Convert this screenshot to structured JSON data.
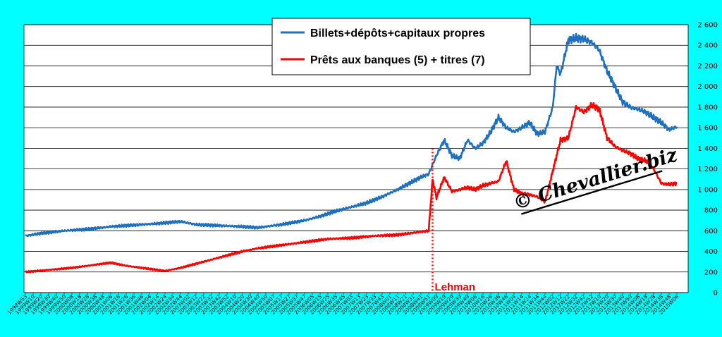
{
  "chart_data": {
    "type": "line",
    "title": "",
    "xlabel": "",
    "ylabel": "",
    "ylim": [
      0,
      2600
    ],
    "yticks": [
      "0",
      "200",
      "400",
      "600",
      "800",
      "1 000",
      "1 200",
      "1 400",
      "1 600",
      "1 800",
      "2 000",
      "2 200",
      "2 400",
      "2 600"
    ],
    "ytick_values": [
      0,
      200,
      400,
      600,
      800,
      1000,
      1200,
      1400,
      1600,
      1800,
      2000,
      2200,
      2400,
      2600
    ],
    "grid": "horizontal",
    "legend_position": "top-center",
    "x_tick_labels": [
      "1998W53",
      "1999W10",
      "1999W20",
      "1999W30",
      "1999W40",
      "1999W50",
      "2000W08",
      "2000W18",
      "2000W28",
      "2000W38",
      "2000W48",
      "2001W06",
      "2001W16",
      "2001W26",
      "2001W36",
      "2001W46",
      "2002W04",
      "2002W14",
      "2002W24",
      "2002W34",
      "2002W44",
      "2003W02",
      "2003W12",
      "2003W22",
      "2003W32",
      "2003W42",
      "2003W52",
      "2004W10",
      "2004W20",
      "2004W30",
      "2004W40",
      "2004W50",
      "2005W07",
      "2005W17",
      "2005W27",
      "2005W37",
      "2005W47",
      "2006W05",
      "2006W15",
      "2006W25",
      "2006W35",
      "2006W45",
      "2007W03",
      "2007W13",
      "2007W23",
      "2007W33",
      "2007W43",
      "2008W01",
      "2008W11",
      "2008W21",
      "2008W31",
      "2008W41",
      "2008W51",
      "2009W09",
      "2009W19",
      "2009W29",
      "2009W39",
      "2009W49",
      "2010W06",
      "2010W16",
      "2010W26",
      "2010W36",
      "2010W46",
      "2011W04",
      "2011W14",
      "2011W24",
      "2011W34",
      "2011W44",
      "2012W02",
      "2012W12",
      "2012W22",
      "2012W32",
      "2012W42",
      "2012W52",
      "2013W10",
      "2013W20",
      "2013W30",
      "2013W40",
      "2013W50",
      "2014W08",
      "2014W18",
      "2014W28",
      "2014W38",
      "2014W48",
      "2015W06"
    ],
    "x_index_range": [
      0,
      84
    ],
    "series": [
      {
        "name": "Billets+dépôts+capitaux propres",
        "color": "#1f6fbf",
        "points": [
          [
            0,
            550
          ],
          [
            2,
            575
          ],
          [
            5,
            600
          ],
          [
            8,
            615
          ],
          [
            11,
            640
          ],
          [
            14,
            655
          ],
          [
            17,
            670
          ],
          [
            20,
            690
          ],
          [
            22,
            660
          ],
          [
            25,
            650
          ],
          [
            28,
            640
          ],
          [
            30,
            630
          ],
          [
            33,
            660
          ],
          [
            36,
            700
          ],
          [
            38,
            740
          ],
          [
            40,
            790
          ],
          [
            42,
            830
          ],
          [
            44,
            870
          ],
          [
            46,
            930
          ],
          [
            48,
            1000
          ],
          [
            49,
            1040
          ],
          [
            50,
            1080
          ],
          [
            51,
            1120
          ],
          [
            52,
            1150
          ],
          [
            53,
            1330
          ],
          [
            54,
            1480
          ],
          [
            55,
            1330
          ],
          [
            56,
            1300
          ],
          [
            57,
            1480
          ],
          [
            58,
            1400
          ],
          [
            59,
            1450
          ],
          [
            60,
            1560
          ],
          [
            61,
            1700
          ],
          [
            62,
            1600
          ],
          [
            63,
            1560
          ],
          [
            64,
            1600
          ],
          [
            65,
            1650
          ],
          [
            66,
            1540
          ],
          [
            67,
            1560
          ],
          [
            68,
            1800
          ],
          [
            68.5,
            2200
          ],
          [
            69,
            2120
          ],
          [
            70,
            2450
          ],
          [
            71,
            2470
          ],
          [
            72,
            2460
          ],
          [
            73,
            2430
          ],
          [
            74,
            2350
          ],
          [
            75,
            2150
          ],
          [
            76,
            2000
          ],
          [
            77,
            1850
          ],
          [
            78,
            1800
          ],
          [
            79,
            1780
          ],
          [
            80,
            1750
          ],
          [
            81,
            1700
          ],
          [
            82,
            1650
          ],
          [
            83,
            1580
          ],
          [
            84,
            1610
          ]
        ]
      },
      {
        "name": "Prêts aux banques (5) + titres (7)",
        "color": "#ff0000",
        "points": [
          [
            0,
            200
          ],
          [
            3,
            220
          ],
          [
            6,
            240
          ],
          [
            9,
            270
          ],
          [
            11,
            290
          ],
          [
            13,
            260
          ],
          [
            16,
            230
          ],
          [
            18,
            210
          ],
          [
            20,
            240
          ],
          [
            22,
            280
          ],
          [
            24,
            320
          ],
          [
            26,
            360
          ],
          [
            28,
            400
          ],
          [
            30,
            430
          ],
          [
            33,
            460
          ],
          [
            36,
            490
          ],
          [
            39,
            520
          ],
          [
            42,
            530
          ],
          [
            45,
            550
          ],
          [
            48,
            560
          ],
          [
            50,
            580
          ],
          [
            51,
            590
          ],
          [
            52,
            600
          ],
          [
            52.5,
            1100
          ],
          [
            53,
            920
          ],
          [
            54,
            1120
          ],
          [
            55,
            980
          ],
          [
            56,
            1000
          ],
          [
            57,
            1020
          ],
          [
            58,
            1000
          ],
          [
            59,
            1040
          ],
          [
            60,
            1060
          ],
          [
            61,
            1080
          ],
          [
            62,
            1280
          ],
          [
            63,
            1000
          ],
          [
            64,
            960
          ],
          [
            65,
            950
          ],
          [
            66,
            930
          ],
          [
            67,
            880
          ],
          [
            68,
            1180
          ],
          [
            69,
            1480
          ],
          [
            70,
            1500
          ],
          [
            71,
            1800
          ],
          [
            72,
            1750
          ],
          [
            73,
            1820
          ],
          [
            74,
            1780
          ],
          [
            75,
            1500
          ],
          [
            76,
            1420
          ],
          [
            77,
            1380
          ],
          [
            78,
            1350
          ],
          [
            79,
            1300
          ],
          [
            80,
            1280
          ],
          [
            81,
            1200
          ],
          [
            82,
            1060
          ],
          [
            83,
            1050
          ],
          [
            84,
            1060
          ]
        ]
      }
    ],
    "annotations": [
      {
        "text": "Lehman",
        "x_index": 52.5,
        "color": "#ff0000"
      },
      {
        "text": "© Chevallier.biz",
        "color": "#000000"
      }
    ]
  }
}
